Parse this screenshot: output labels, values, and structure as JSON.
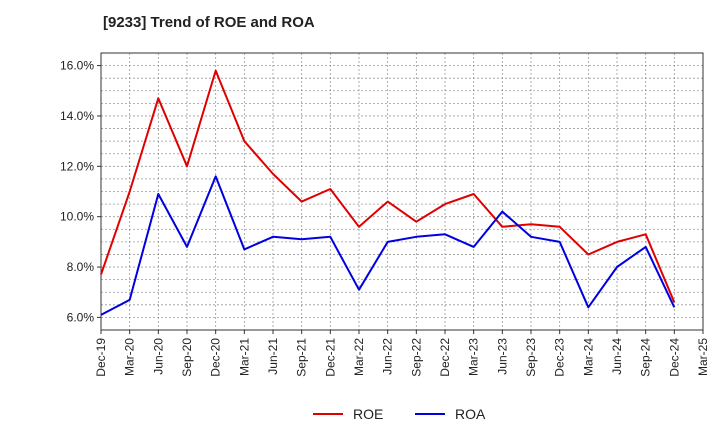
{
  "chart_data": {
    "type": "line",
    "title": "[9233]  Trend of ROE and ROA",
    "xlabel": "",
    "ylabel": "",
    "categories": [
      "Dec-19",
      "Mar-20",
      "Jun-20",
      "Sep-20",
      "Dec-20",
      "Mar-21",
      "Jun-21",
      "Sep-21",
      "Dec-21",
      "Mar-22",
      "Jun-22",
      "Sep-22",
      "Dec-22",
      "Mar-23",
      "Jun-23",
      "Sep-23",
      "Dec-23",
      "Mar-24",
      "Jun-24",
      "Sep-24",
      "Dec-24",
      "Mar-25"
    ],
    "ylim": [
      5.5,
      16.5
    ],
    "yticks": [
      6.0,
      8.0,
      10.0,
      12.0,
      14.0,
      16.0
    ],
    "ytick_labels": [
      "6.0%",
      "8.0%",
      "10.0%",
      "12.0%",
      "14.0%",
      "16.0%"
    ],
    "grid": true,
    "legend_position": "bottom",
    "series": [
      {
        "name": "ROE",
        "color": "#e00000",
        "values": [
          7.7,
          11.0,
          14.7,
          12.0,
          15.8,
          13.0,
          11.7,
          10.6,
          11.1,
          9.6,
          10.6,
          9.8,
          10.5,
          10.9,
          9.6,
          9.7,
          9.6,
          8.5,
          9.0,
          9.3,
          6.6,
          null
        ]
      },
      {
        "name": "ROA",
        "color": "#0000e0",
        "values": [
          6.1,
          6.7,
          10.9,
          8.8,
          11.6,
          8.7,
          9.2,
          9.1,
          9.2,
          7.1,
          9.0,
          9.2,
          9.3,
          8.8,
          10.2,
          9.2,
          9.0,
          6.4,
          8.0,
          8.8,
          6.4,
          null
        ]
      }
    ]
  }
}
